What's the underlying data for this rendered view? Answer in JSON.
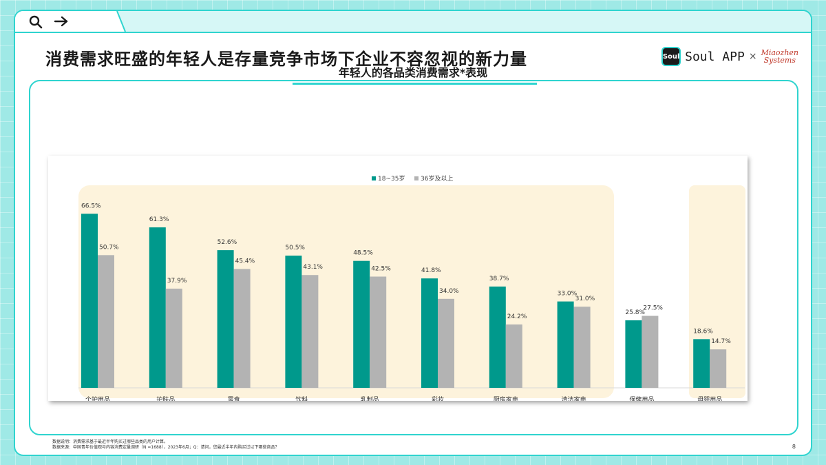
{
  "page": {
    "title": "消费需求旺盛的年轻人是存量竞争市场下企业不容忽视的新力量",
    "brand": {
      "soul_logo_text": "Soul",
      "soul_name": "Soul APP",
      "separator": "×",
      "partner_line1": "Miaozhen",
      "partner_line2": "Systems"
    },
    "notes": [
      "数据说明：消费需求基于最近半年购买过哪些品类的用户计算。",
      "数据来源：中国青年价值观与内容消费定量调研（N =1688），2023年6月；Q：请问，您最近半年内购买过以下哪些商品？"
    ],
    "page_number": "8"
  },
  "colors": {
    "young": "#00998c",
    "older": "#b3b3b3",
    "highlight": "#fdf3dc",
    "accent": "#2fd4cf"
  },
  "icons": {
    "search": "search-icon",
    "arrow": "arrow-right-icon"
  },
  "chart_data": {
    "type": "bar",
    "title": "年轻人的各品类消费需求*表现",
    "legend_position": "top-center",
    "categories": [
      "个护用品",
      "护肤品",
      "零食",
      "饮料",
      "乳制品",
      "彩妆",
      "厨房家电",
      "清洁家电",
      "保健用品",
      "母婴用品"
    ],
    "series": [
      {
        "name": "18~35岁",
        "values": [
          66.5,
          61.3,
          52.6,
          50.5,
          48.5,
          41.8,
          38.7,
          33.0,
          25.8,
          18.6
        ]
      },
      {
        "name": "36岁及以上",
        "values": [
          50.7,
          37.9,
          45.4,
          43.1,
          42.5,
          34.0,
          24.2,
          31.0,
          27.5,
          14.7
        ]
      }
    ],
    "value_labels": [
      [
        "66.5%",
        "61.3%",
        "52.6%",
        "50.5%",
        "48.5%",
        "41.8%",
        "38.7%",
        "33.0%",
        "25.8%",
        "18.6%"
      ],
      [
        "50.7%",
        "37.9%",
        "45.4%",
        "43.1%",
        "42.5%",
        "34.0%",
        "24.2%",
        "31.0%",
        "27.5%",
        "14.7%"
      ]
    ],
    "ylim": [
      0,
      70
    ],
    "grid": false
  }
}
